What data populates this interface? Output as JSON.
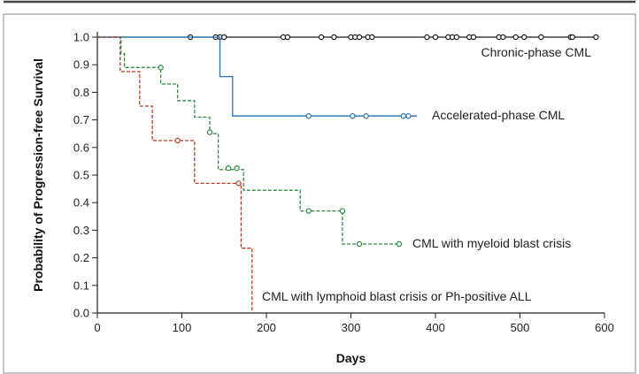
{
  "chart_data": {
    "type": "line",
    "step": true,
    "xlabel": "Days",
    "ylabel": "Probability of Progression-free Survival",
    "xlim": [
      0,
      600
    ],
    "ylim": [
      0,
      1.0
    ],
    "x_ticks": [
      0,
      100,
      200,
      300,
      400,
      500,
      600
    ],
    "y_ticks": [
      0.0,
      0.1,
      0.2,
      0.3,
      0.4,
      0.5,
      0.6,
      0.7,
      0.8,
      0.9,
      1.0
    ],
    "x_tick_labels": [
      "0",
      "100",
      "200",
      "300",
      "400",
      "500",
      "600"
    ],
    "y_tick_labels": [
      "0.0",
      "0.1",
      "0.2",
      "0.3",
      "0.4",
      "0.5",
      "0.6",
      "0.7",
      "0.8",
      "0.9",
      "1.0"
    ],
    "grid": false,
    "series": [
      {
        "name": "Chronic-phase CML",
        "color": "#1a1a1a",
        "dash": "solid",
        "steps": [
          [
            0,
            1.0
          ],
          [
            590,
            1.0
          ]
        ],
        "censored": [
          [
            110,
            1.0
          ],
          [
            140,
            1.0
          ],
          [
            145,
            1.0
          ],
          [
            150,
            1.0
          ],
          [
            220,
            1.0
          ],
          [
            225,
            1.0
          ],
          [
            265,
            1.0
          ],
          [
            280,
            1.0
          ],
          [
            300,
            1.0
          ],
          [
            305,
            1.0
          ],
          [
            310,
            1.0
          ],
          [
            320,
            1.0
          ],
          [
            325,
            1.0
          ],
          [
            390,
            1.0
          ],
          [
            400,
            1.0
          ],
          [
            415,
            1.0
          ],
          [
            420,
            1.0
          ],
          [
            425,
            1.0
          ],
          [
            440,
            1.0
          ],
          [
            445,
            1.0
          ],
          [
            475,
            1.0
          ],
          [
            480,
            1.0
          ],
          [
            495,
            1.0
          ],
          [
            505,
            1.0
          ],
          [
            525,
            1.0
          ],
          [
            560,
            1.0
          ],
          [
            562,
            1.0
          ],
          [
            590,
            1.0
          ]
        ]
      },
      {
        "name": "Accelerated-phase CML",
        "color": "#2a72b5",
        "dash": "solid",
        "steps": [
          [
            0,
            1.0
          ],
          [
            145,
            1.0
          ],
          [
            145,
            0.857
          ],
          [
            160,
            0.857
          ],
          [
            160,
            0.714
          ],
          [
            378,
            0.714
          ]
        ],
        "censored": [
          [
            250,
            0.714
          ],
          [
            302,
            0.714
          ],
          [
            318,
            0.714
          ],
          [
            362,
            0.714
          ],
          [
            368,
            0.714
          ]
        ]
      },
      {
        "name": "CML with myeloid blast crisis",
        "color": "#2e8b3e",
        "dash": "4,2",
        "steps": [
          [
            0,
            1.0
          ],
          [
            28,
            1.0
          ],
          [
            28,
            0.94
          ],
          [
            32,
            0.94
          ],
          [
            32,
            0.89
          ],
          [
            75,
            0.89
          ],
          [
            75,
            0.83
          ],
          [
            95,
            0.83
          ],
          [
            95,
            0.77
          ],
          [
            115,
            0.77
          ],
          [
            115,
            0.71
          ],
          [
            133,
            0.71
          ],
          [
            133,
            0.65
          ],
          [
            143,
            0.65
          ],
          [
            143,
            0.52
          ],
          [
            160,
            0.52
          ],
          [
            160,
            0.52
          ],
          [
            173,
            0.52
          ],
          [
            173,
            0.445
          ],
          [
            240,
            0.445
          ],
          [
            240,
            0.37
          ],
          [
            290,
            0.37
          ],
          [
            290,
            0.25
          ],
          [
            357,
            0.25
          ]
        ],
        "censored": [
          [
            75,
            0.89
          ],
          [
            133,
            0.655
          ],
          [
            155,
            0.525
          ],
          [
            165,
            0.525
          ],
          [
            250,
            0.37
          ],
          [
            290,
            0.37
          ],
          [
            310,
            0.25
          ],
          [
            357,
            0.25
          ]
        ]
      },
      {
        "name": "CML with lymphoid blast crisis or Ph-positive ALL",
        "color": "#b83a26",
        "dash": "4,2",
        "steps": [
          [
            0,
            1.0
          ],
          [
            27,
            1.0
          ],
          [
            27,
            0.875
          ],
          [
            50,
            0.875
          ],
          [
            50,
            0.75
          ],
          [
            65,
            0.75
          ],
          [
            65,
            0.625
          ],
          [
            115,
            0.625
          ],
          [
            115,
            0.47
          ],
          [
            170,
            0.47
          ],
          [
            170,
            0.235
          ],
          [
            183,
            0.235
          ],
          [
            183,
            0.0
          ]
        ],
        "censored": [
          [
            95,
            0.625
          ],
          [
            167,
            0.47
          ]
        ]
      }
    ]
  }
}
